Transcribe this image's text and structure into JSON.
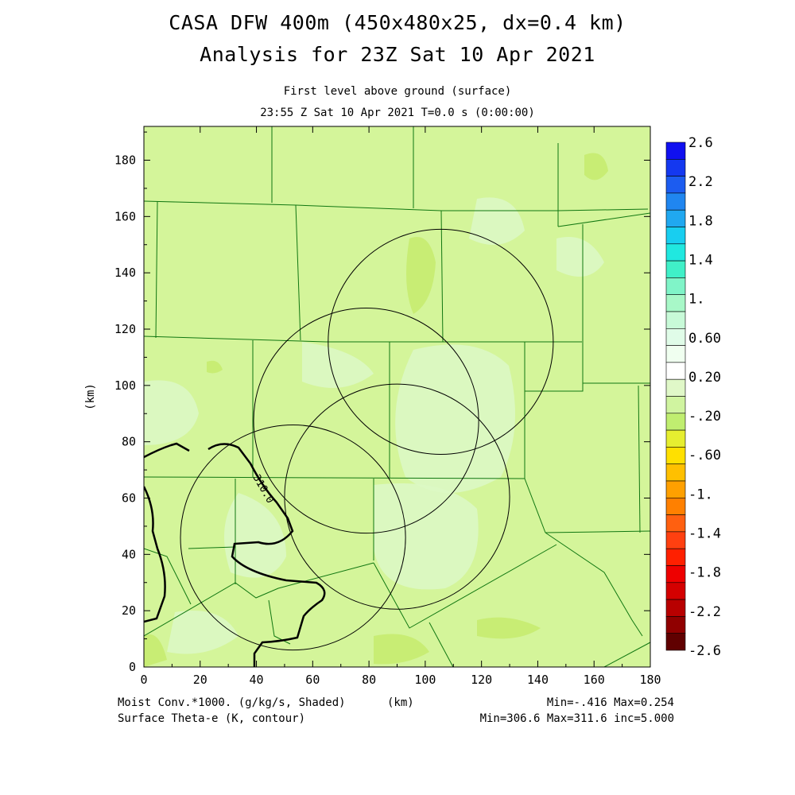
{
  "header": {
    "title_line1": "CASA DFW 400m (450x480x25, dx=0.4 km)",
    "title_line2": "Analysis for 23Z Sat 10 Apr 2021",
    "level": "First level above ground (surface)",
    "time": "23:55 Z Sat 10 Apr 2021    T=0.0 s (0:00:00)"
  },
  "axes": {
    "x_label": "(km)",
    "y_label": "(km)",
    "x_ticks": [
      "0",
      "20",
      "40",
      "60",
      "80",
      "100",
      "120",
      "140",
      "160",
      "180"
    ],
    "y_ticks": [
      "0",
      "20",
      "40",
      "60",
      "80",
      "100",
      "120",
      "140",
      "160",
      "180"
    ],
    "x_range": [
      0,
      180
    ],
    "y_range": [
      0,
      192
    ]
  },
  "colorbar": {
    "labels": [
      "2.6",
      "2.2",
      "1.8",
      "1.4",
      "1.",
      "0.60",
      "0.20",
      "-.20",
      "-.60",
      "-1.",
      "-1.4",
      "-1.8",
      "-2.2",
      "-2.6"
    ],
    "colors": [
      "#1010f0",
      "#1438f0",
      "#1c5cf0",
      "#2086f0",
      "#20a8f0",
      "#18cef0",
      "#20e8e0",
      "#40f0c8",
      "#80f4c8",
      "#a8f8c8",
      "#c8fad8",
      "#e0fce8",
      "#f0fff0",
      "#ffffff",
      "#e0f8c8",
      "#d0f4a0",
      "#c0ee70",
      "#e6ee30",
      "#ffe000",
      "#ffc000",
      "#ffa000",
      "#ff8000",
      "#ff6010",
      "#ff4010",
      "#ff2000",
      "#ee0000",
      "#d40000",
      "#b80000",
      "#900000",
      "#600000"
    ]
  },
  "map": {
    "background_color": "#d4f59a",
    "county_line_color": "#117711",
    "radar_ring_color": "#000000",
    "contour_label": "310.0"
  },
  "footer": {
    "field1": "Moist Conv.*1000. (g/kg/s, Shaded)",
    "field2": "Surface Theta-e (K, contour)",
    "units": "(km)",
    "field1_stats": "Min=-.416  Max=0.254",
    "field2_stats": "Min=306.6  Max=311.6  inc=5.000"
  }
}
